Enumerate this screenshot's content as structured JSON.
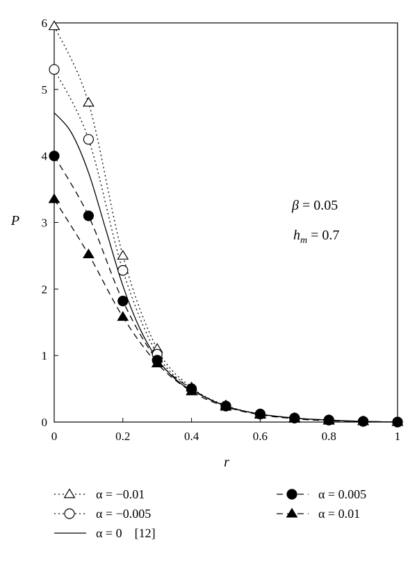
{
  "chart_data": {
    "type": "line",
    "title": "",
    "xlabel": "r",
    "ylabel": "P",
    "xlim": [
      0,
      1
    ],
    "ylim": [
      0,
      6
    ],
    "xticks": [
      0,
      0.2,
      0.4,
      0.6,
      0.8,
      1
    ],
    "xtick_labels": [
      "0",
      "0.2",
      "0.4",
      "0.6",
      "0.8",
      "1"
    ],
    "yticks": [
      0,
      1,
      2,
      3,
      4,
      5,
      6
    ],
    "ytick_labels": [
      "0",
      "1",
      "2",
      "3",
      "4",
      "5",
      "6"
    ],
    "grid": false,
    "legend_position": "bottom",
    "annotations": [
      {
        "symbol": "β",
        "text": " = 0.05"
      },
      {
        "symbol": "h",
        "sub": "m",
        "text": " = 0.7"
      }
    ],
    "series": [
      {
        "name": "α = −0.01",
        "line": "dotted",
        "marker": "open-triangle",
        "x": [
          0,
          0.1,
          0.2,
          0.3,
          0.4,
          0.5,
          0.6,
          0.7,
          0.8,
          0.9,
          1.0
        ],
        "y": [
          5.95,
          4.8,
          2.5,
          1.1,
          0.52,
          0.25,
          0.12,
          0.06,
          0.03,
          0.01,
          0.0
        ]
      },
      {
        "name": "α = −0.005",
        "line": "dotted",
        "marker": "open-circle",
        "x": [
          0,
          0.1,
          0.2,
          0.3,
          0.4,
          0.5,
          0.6,
          0.7,
          0.8,
          0.9,
          1.0
        ],
        "y": [
          5.3,
          4.25,
          2.28,
          1.02,
          0.5,
          0.24,
          0.12,
          0.06,
          0.03,
          0.01,
          0.0
        ]
      },
      {
        "name": "α = 0",
        "ref": "[12]",
        "line": "solid",
        "marker": "none",
        "x": [
          0,
          0.05,
          0.1,
          0.15,
          0.2,
          0.25,
          0.3,
          0.35,
          0.4,
          0.5,
          0.6,
          0.7,
          0.8,
          0.9,
          1.0
        ],
        "y": [
          4.65,
          4.35,
          3.75,
          2.9,
          2.05,
          1.4,
          0.95,
          0.66,
          0.48,
          0.24,
          0.12,
          0.06,
          0.03,
          0.01,
          0.0
        ]
      },
      {
        "name": "α = 0.005",
        "line": "dashed",
        "marker": "filled-circle",
        "x": [
          0,
          0.1,
          0.2,
          0.3,
          0.4,
          0.5,
          0.6,
          0.7,
          0.8,
          0.9,
          1.0
        ],
        "y": [
          4.0,
          3.1,
          1.82,
          0.93,
          0.5,
          0.24,
          0.12,
          0.06,
          0.03,
          0.01,
          0.0
        ]
      },
      {
        "name": "α = 0.01",
        "line": "dashed",
        "marker": "filled-triangle",
        "x": [
          0,
          0.1,
          0.2,
          0.3,
          0.4,
          0.5,
          0.6,
          0.7,
          0.8,
          0.9,
          1.0
        ],
        "y": [
          3.35,
          2.52,
          1.58,
          0.88,
          0.46,
          0.23,
          0.11,
          0.05,
          0.02,
          0.01,
          0.0
        ]
      }
    ]
  }
}
